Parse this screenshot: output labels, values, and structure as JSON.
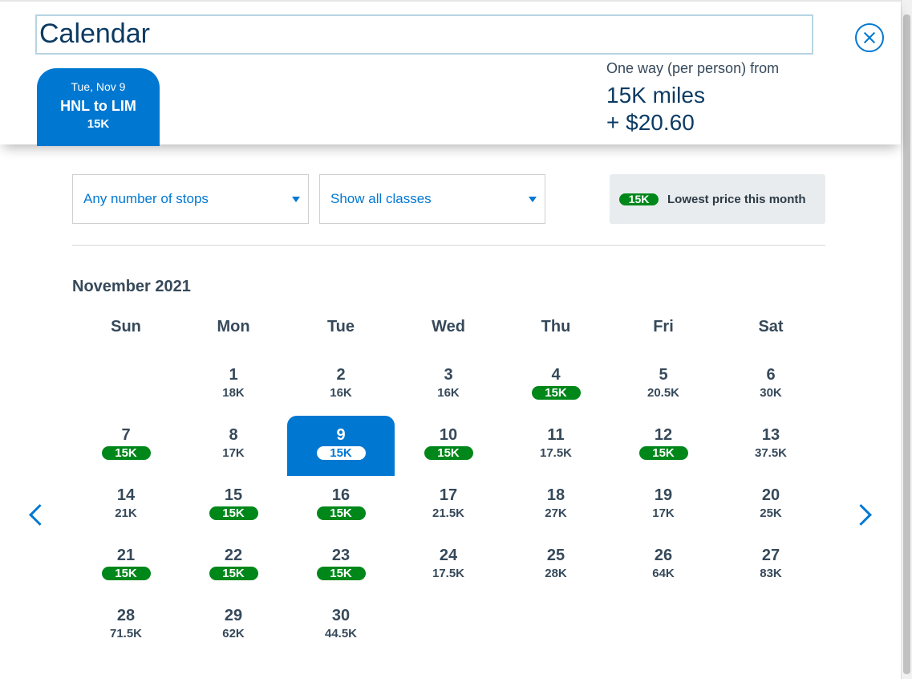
{
  "header": {
    "title": "Calendar",
    "trip": {
      "date": "Tue, Nov 9",
      "route": "HNL to LIM",
      "price": "15K"
    },
    "fare": {
      "label": "One way (per person) from",
      "miles": "15K miles",
      "tax": "+ $20.60"
    }
  },
  "filters": {
    "stops": "Any number of stops",
    "classes": "Show all classes"
  },
  "legend": {
    "pill": "15K",
    "text": "Lowest price this month"
  },
  "calendar": {
    "month": "November 2021",
    "weekdays": [
      "Sun",
      "Mon",
      "Tue",
      "Wed",
      "Thu",
      "Fri",
      "Sat"
    ],
    "days": [
      {
        "day": "1",
        "price": "18K",
        "low": false
      },
      {
        "day": "2",
        "price": "16K",
        "low": false
      },
      {
        "day": "3",
        "price": "16K",
        "low": false
      },
      {
        "day": "4",
        "price": "15K",
        "low": true
      },
      {
        "day": "5",
        "price": "20.5K",
        "low": false
      },
      {
        "day": "6",
        "price": "30K",
        "low": false
      },
      {
        "day": "7",
        "price": "15K",
        "low": true
      },
      {
        "day": "8",
        "price": "17K",
        "low": false
      },
      {
        "day": "9",
        "price": "15K",
        "low": true,
        "selected": true
      },
      {
        "day": "10",
        "price": "15K",
        "low": true
      },
      {
        "day": "11",
        "price": "17.5K",
        "low": false
      },
      {
        "day": "12",
        "price": "15K",
        "low": true
      },
      {
        "day": "13",
        "price": "37.5K",
        "low": false
      },
      {
        "day": "14",
        "price": "21K",
        "low": false
      },
      {
        "day": "15",
        "price": "15K",
        "low": true
      },
      {
        "day": "16",
        "price": "15K",
        "low": true
      },
      {
        "day": "17",
        "price": "21.5K",
        "low": false
      },
      {
        "day": "18",
        "price": "27K",
        "low": false
      },
      {
        "day": "19",
        "price": "17K",
        "low": false
      },
      {
        "day": "20",
        "price": "25K",
        "low": false
      },
      {
        "day": "21",
        "price": "15K",
        "low": true
      },
      {
        "day": "22",
        "price": "15K",
        "low": true
      },
      {
        "day": "23",
        "price": "15K",
        "low": true
      },
      {
        "day": "24",
        "price": "17.5K",
        "low": false
      },
      {
        "day": "25",
        "price": "28K",
        "low": false
      },
      {
        "day": "26",
        "price": "64K",
        "low": false
      },
      {
        "day": "27",
        "price": "83K",
        "low": false
      },
      {
        "day": "28",
        "price": "71.5K",
        "low": false
      },
      {
        "day": "29",
        "price": "62K",
        "low": false
      },
      {
        "day": "30",
        "price": "44.5K",
        "low": false
      }
    ]
  },
  "colors": {
    "accent": "#0078d2",
    "lowest": "#00871a",
    "text": "#36495a",
    "heading": "#0c3b63"
  },
  "icons": {
    "close": "close-icon",
    "prev": "chevron-left-icon",
    "next": "chevron-right-icon",
    "dropdown": "chevron-down-icon"
  }
}
